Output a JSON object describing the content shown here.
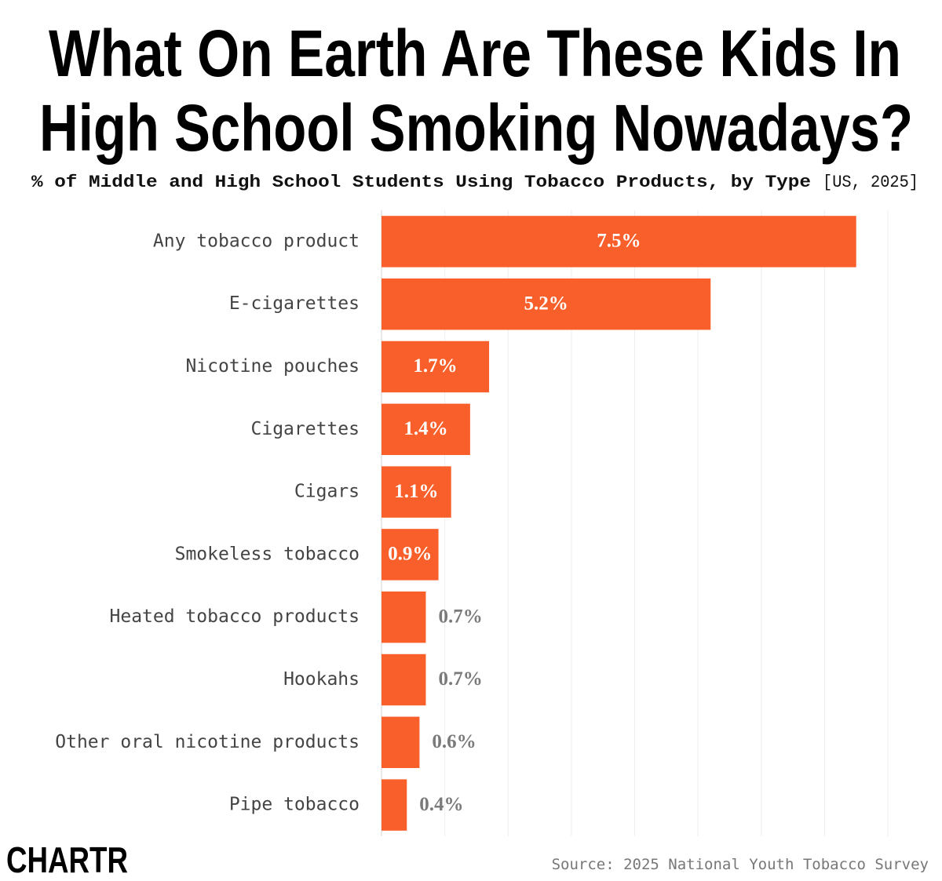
{
  "chart_data": {
    "type": "bar",
    "orientation": "horizontal",
    "title": [
      "What On Earth Are These Kids In",
      "High School Smoking Nowadays?"
    ],
    "subtitle": "% of Middle and High School Students Using Tobacco Products, by Type",
    "subtitle_tag": "[US, 2025]",
    "categories": [
      "Any tobacco product",
      "E-cigarettes",
      "Nicotine pouches",
      "Cigarettes",
      "Cigars",
      "Smokeless tobacco",
      "Heated tobacco products",
      "Hookahs",
      "Other oral nicotine products",
      "Pipe tobacco"
    ],
    "values": [
      7.5,
      5.2,
      1.7,
      1.4,
      1.1,
      0.9,
      0.7,
      0.7,
      0.6,
      0.4
    ],
    "value_labels": [
      "7.5%",
      "5.2%",
      "1.7%",
      "1.4%",
      "1.1%",
      "0.9%",
      "0.7%",
      "0.7%",
      "0.6%",
      "0.4%"
    ],
    "color": "#f95f2a",
    "xlim": [
      0,
      8
    ],
    "xticks": [
      0,
      1,
      2,
      3,
      4,
      5,
      6,
      7,
      8
    ],
    "grid": true,
    "source": "Source: 2025 National Youth Tobacco Survey",
    "logo": "CHARTR"
  }
}
